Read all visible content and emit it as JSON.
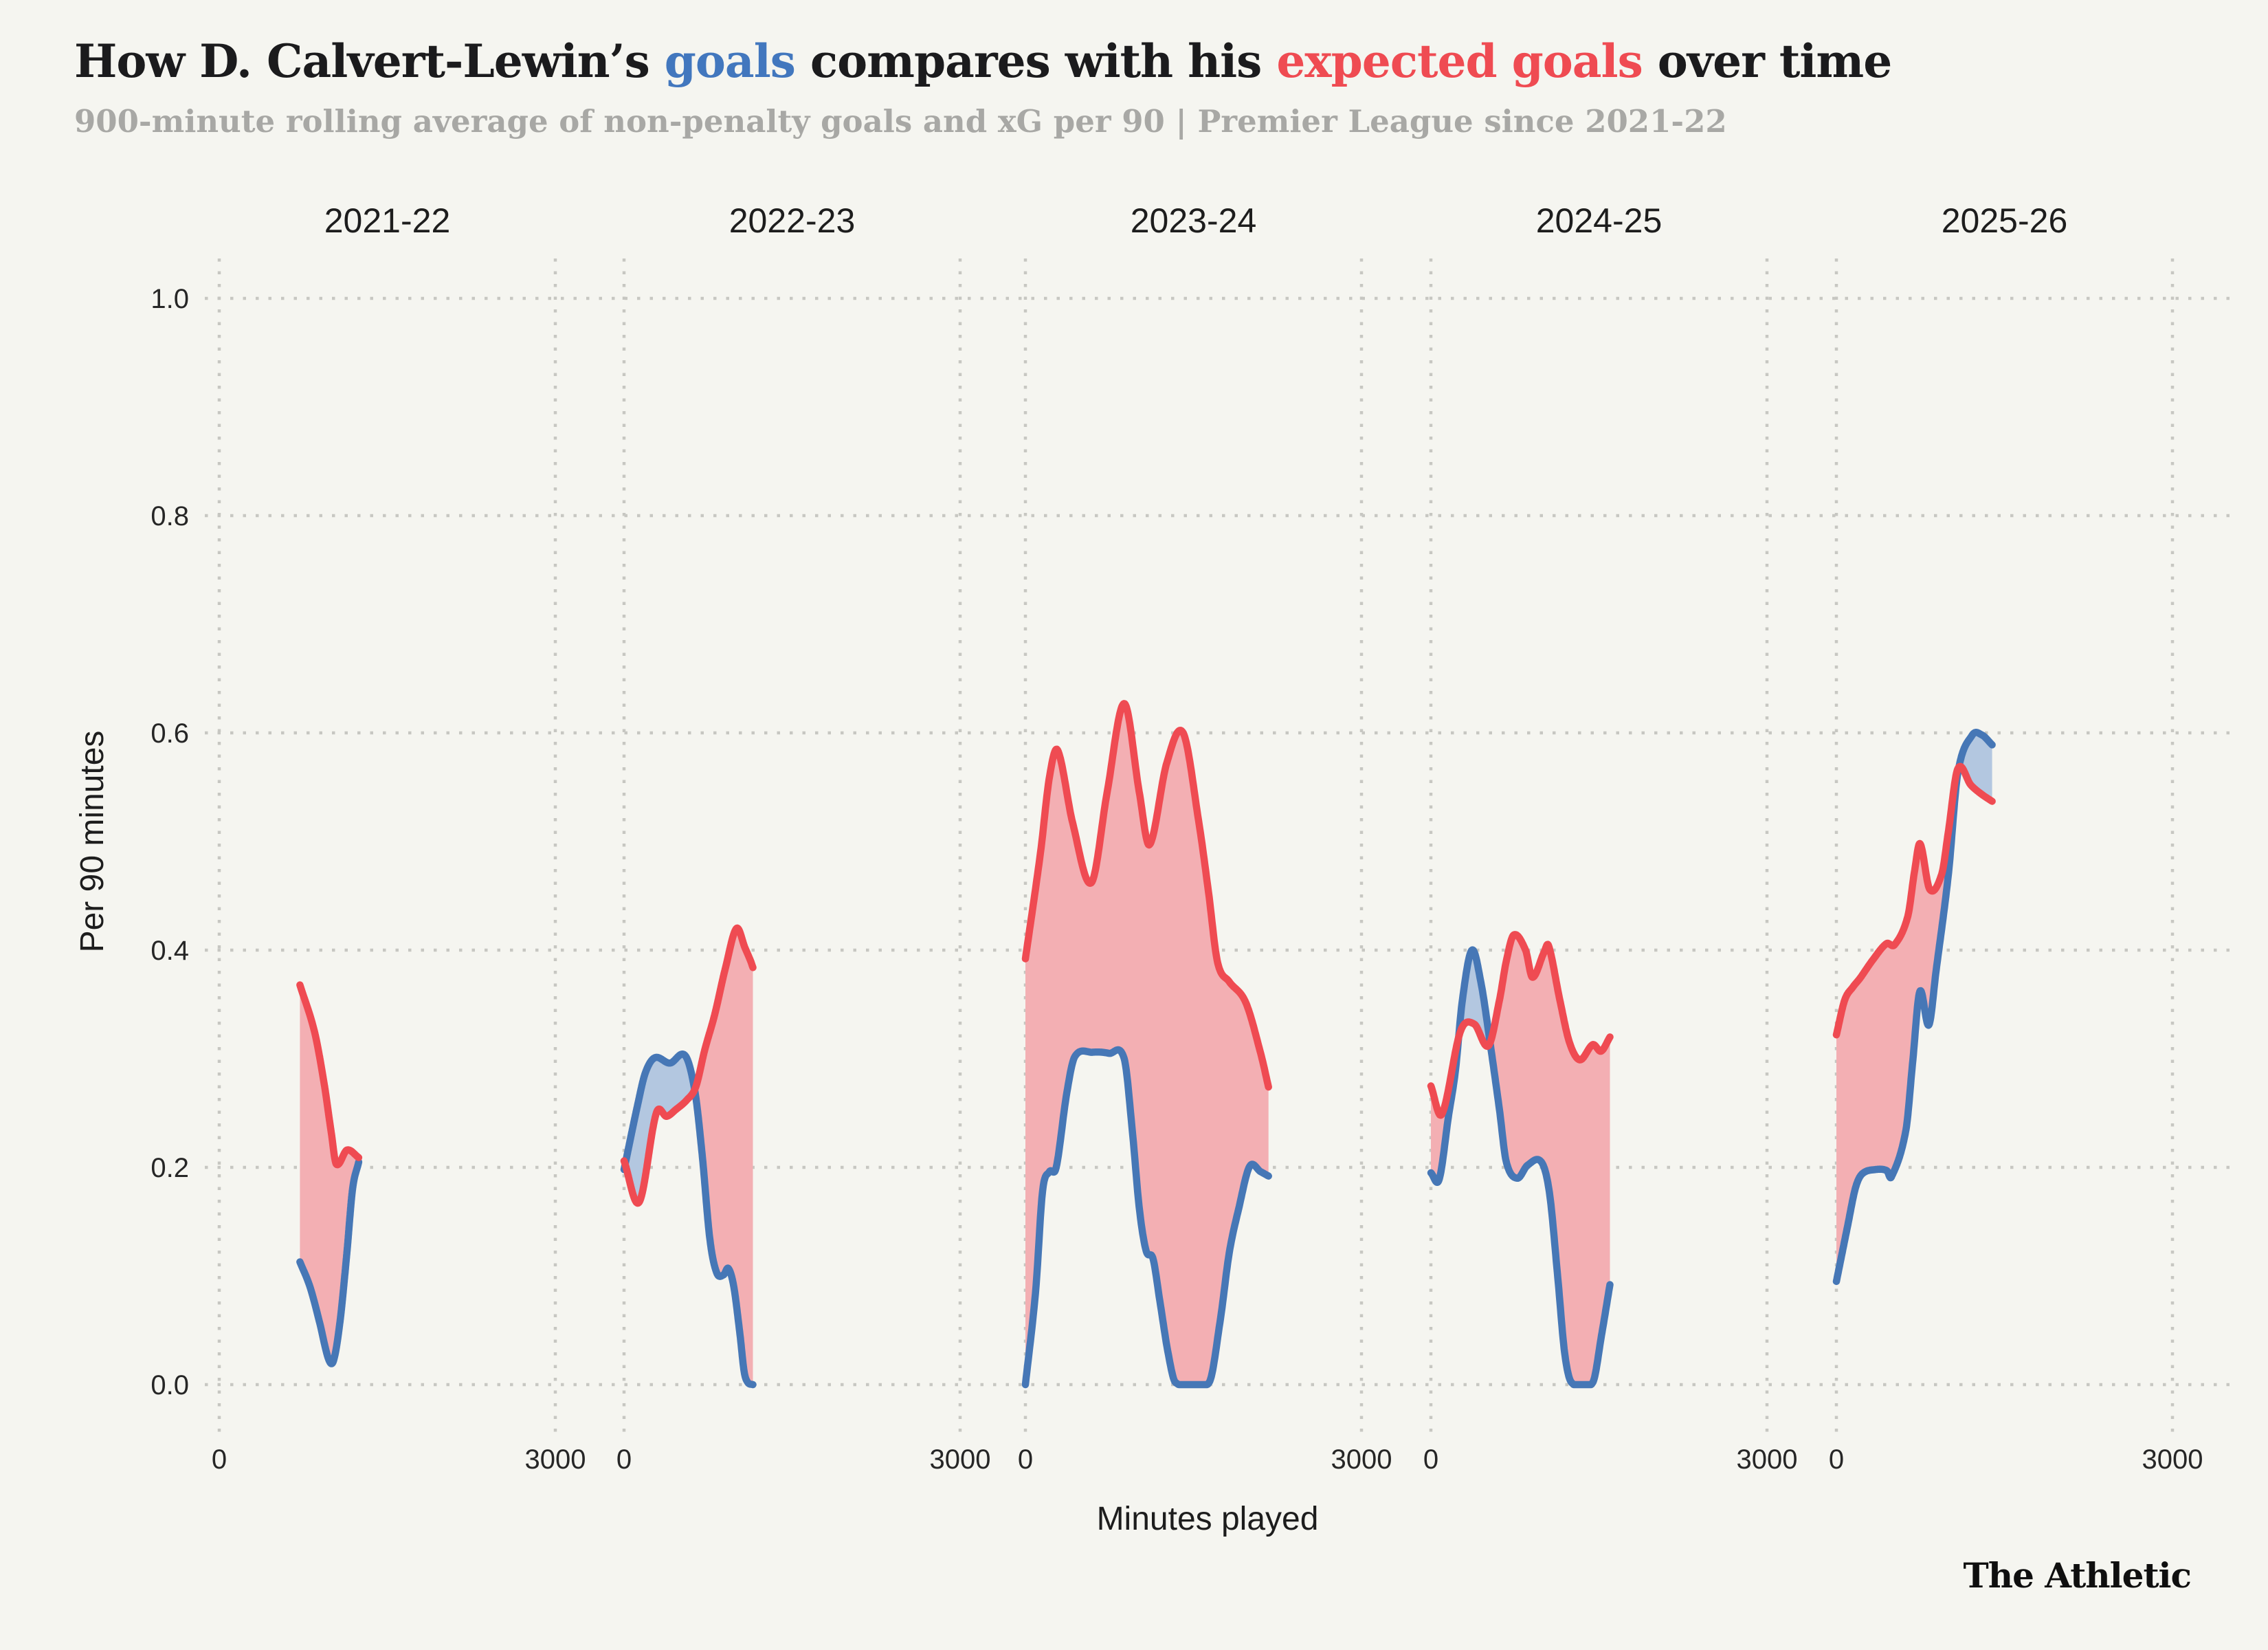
{
  "title": {
    "parts": [
      {
        "text": "How D. Calvert-Lewin’s ",
        "color": "#1B1B1D"
      },
      {
        "text": "goals",
        "color": "#4277BE"
      },
      {
        "text": " compares with his ",
        "color": "#1B1B1D"
      },
      {
        "text": "expected goals",
        "color": "#EF4B52"
      },
      {
        "text": " over time",
        "color": "#1B1B1D"
      }
    ]
  },
  "subtitle": "900-minute rolling average of non-penalty goals and xG per 90 | Premier League since 2021-22",
  "footer": {
    "brand": "The Athletic"
  },
  "colors": {
    "background": "#F5F5F0",
    "goals_line": "#4677B6",
    "xg_line": "#EF4B52",
    "goals_fill": "#B3C7E0",
    "xg_fill": "#F3AFB3",
    "grid": "#C7C7C2",
    "axis_text": "#1D1D1D"
  },
  "chart_data": {
    "type": "area",
    "title": "How D. Calvert-Lewin's goals compares with his expected goals over time",
    "subtitle": "900-minute rolling average of non-penalty goals and xG per 90 | Premier League since 2021-22",
    "x_axis": {
      "label": "Minutes played",
      "ticks": [
        {
          "label": "0",
          "value": 0
        },
        {
          "label": "3000",
          "value": 3000
        }
      ]
    },
    "y_axis": {
      "label": "Per 90 minutes",
      "range": [
        0.0,
        1.08
      ],
      "ticks": [
        {
          "label": "0.0",
          "value": 0.0
        },
        {
          "label": "0.2",
          "value": 0.2
        },
        {
          "label": "0.4",
          "value": 0.4
        },
        {
          "label": "0.6",
          "value": 0.6
        },
        {
          "label": "0.8",
          "value": 0.8
        },
        {
          "label": "1.0",
          "value": 1.0
        }
      ]
    },
    "series_meta": [
      {
        "key": "goals",
        "name": "goals (non-penalty, per 90)",
        "color": "#4677B6"
      },
      {
        "key": "xg",
        "name": "expected goals (xG per 90)",
        "color": "#EF4B52"
      }
    ],
    "panels": [
      {
        "season": "2021-22",
        "goals": [
          [
            720,
            0.113
          ],
          [
            810,
            0.09
          ],
          [
            894,
            0.058
          ],
          [
            974,
            0.024
          ],
          [
            1020,
            0.022
          ],
          [
            1078,
            0.058
          ],
          [
            1140,
            0.122
          ],
          [
            1190,
            0.18
          ],
          [
            1245,
            0.205
          ]
        ],
        "xg": [
          [
            720,
            0.368
          ],
          [
            850,
            0.325
          ],
          [
            935,
            0.278
          ],
          [
            1000,
            0.232
          ],
          [
            1045,
            0.203
          ],
          [
            1141,
            0.216
          ],
          [
            1245,
            0.209
          ]
        ]
      },
      {
        "season": "2022-23",
        "goals": [
          [
            0,
            0.198
          ],
          [
            116,
            0.255
          ],
          [
            190,
            0.287
          ],
          [
            276,
            0.301
          ],
          [
            410,
            0.296
          ],
          [
            545,
            0.303
          ],
          [
            631,
            0.271
          ],
          [
            698,
            0.211
          ],
          [
            766,
            0.134
          ],
          [
            827,
            0.103
          ],
          [
            888,
            0.101
          ],
          [
            931,
            0.107
          ],
          [
            980,
            0.09
          ],
          [
            1035,
            0.046
          ],
          [
            1072,
            0.012
          ],
          [
            1105,
            0.002
          ],
          [
            1150,
            0.0
          ]
        ],
        "xg": [
          [
            0,
            0.206
          ],
          [
            135,
            0.168
          ],
          [
            288,
            0.25
          ],
          [
            380,
            0.247
          ],
          [
            460,
            0.253
          ],
          [
            560,
            0.262
          ],
          [
            640,
            0.274
          ],
          [
            720,
            0.308
          ],
          [
            810,
            0.341
          ],
          [
            906,
            0.384
          ],
          [
            1004,
            0.42
          ],
          [
            1080,
            0.402
          ],
          [
            1130,
            0.39
          ],
          [
            1150,
            0.384
          ]
        ]
      },
      {
        "season": "2023-24",
        "goals": [
          [
            0,
            0.0
          ],
          [
            92,
            0.087
          ],
          [
            153,
            0.178
          ],
          [
            214,
            0.196
          ],
          [
            275,
            0.2
          ],
          [
            367,
            0.267
          ],
          [
            441,
            0.302
          ],
          [
            600,
            0.306
          ],
          [
            747,
            0.305
          ],
          [
            882,
            0.3
          ],
          [
            955,
            0.233
          ],
          [
            1017,
            0.162
          ],
          [
            1078,
            0.123
          ],
          [
            1139,
            0.116
          ],
          [
            1200,
            0.077
          ],
          [
            1274,
            0.029
          ],
          [
            1340,
            0.002
          ],
          [
            1640,
            0.002
          ],
          [
            1739,
            0.059
          ],
          [
            1819,
            0.121
          ],
          [
            1904,
            0.162
          ],
          [
            2002,
            0.201
          ],
          [
            2100,
            0.196
          ],
          [
            2170,
            0.192
          ]
        ],
        "xg": [
          [
            0,
            0.392
          ],
          [
            135,
            0.49
          ],
          [
            214,
            0.559
          ],
          [
            288,
            0.584
          ],
          [
            422,
            0.517
          ],
          [
            588,
            0.462
          ],
          [
            729,
            0.545
          ],
          [
            882,
            0.627
          ],
          [
            1017,
            0.545
          ],
          [
            1108,
            0.497
          ],
          [
            1261,
            0.572
          ],
          [
            1408,
            0.6
          ],
          [
            1549,
            0.517
          ],
          [
            1635,
            0.453
          ],
          [
            1715,
            0.389
          ],
          [
            1819,
            0.371
          ],
          [
            1966,
            0.352
          ],
          [
            2100,
            0.305
          ],
          [
            2170,
            0.274
          ]
        ]
      },
      {
        "season": "2024-25",
        "goals": [
          [
            0,
            0.195
          ],
          [
            74,
            0.189
          ],
          [
            157,
            0.247
          ],
          [
            219,
            0.289
          ],
          [
            281,
            0.354
          ],
          [
            366,
            0.4
          ],
          [
            447,
            0.37
          ],
          [
            532,
            0.312
          ],
          [
            612,
            0.253
          ],
          [
            673,
            0.205
          ],
          [
            771,
            0.19
          ],
          [
            863,
            0.202
          ],
          [
            986,
            0.205
          ],
          [
            1059,
            0.176
          ],
          [
            1133,
            0.098
          ],
          [
            1194,
            0.029
          ],
          [
            1255,
            0.002
          ],
          [
            1445,
            0.002
          ],
          [
            1524,
            0.046
          ],
          [
            1598,
            0.092
          ]
        ],
        "xg": [
          [
            0,
            0.275
          ],
          [
            98,
            0.249
          ],
          [
            263,
            0.325
          ],
          [
            386,
            0.332
          ],
          [
            514,
            0.312
          ],
          [
            612,
            0.354
          ],
          [
            673,
            0.39
          ],
          [
            740,
            0.414
          ],
          [
            845,
            0.4
          ],
          [
            906,
            0.375
          ],
          [
            1010,
            0.398
          ],
          [
            1051,
            0.404
          ],
          [
            1151,
            0.354
          ],
          [
            1237,
            0.315
          ],
          [
            1330,
            0.299
          ],
          [
            1445,
            0.313
          ],
          [
            1520,
            0.307
          ],
          [
            1598,
            0.32
          ]
        ]
      },
      {
        "season": "2025-26",
        "goals": [
          [
            0,
            0.095
          ],
          [
            100,
            0.146
          ],
          [
            170,
            0.181
          ],
          [
            230,
            0.194
          ],
          [
            350,
            0.198
          ],
          [
            450,
            0.197
          ],
          [
            490,
            0.191
          ],
          [
            620,
            0.234
          ],
          [
            680,
            0.296
          ],
          [
            745,
            0.362
          ],
          [
            825,
            0.331
          ],
          [
            890,
            0.381
          ],
          [
            1000,
            0.47
          ],
          [
            1084,
            0.563
          ],
          [
            1213,
            0.598
          ],
          [
            1300,
            0.598
          ],
          [
            1390,
            0.589
          ]
        ],
        "xg": [
          [
            0,
            0.322
          ],
          [
            74,
            0.354
          ],
          [
            147,
            0.366
          ],
          [
            210,
            0.374
          ],
          [
            325,
            0.391
          ],
          [
            447,
            0.406
          ],
          [
            520,
            0.405
          ],
          [
            637,
            0.431
          ],
          [
            698,
            0.473
          ],
          [
            747,
            0.498
          ],
          [
            833,
            0.456
          ],
          [
            940,
            0.47
          ],
          [
            998,
            0.508
          ],
          [
            1084,
            0.567
          ],
          [
            1200,
            0.552
          ],
          [
            1290,
            0.544
          ],
          [
            1390,
            0.537
          ]
        ]
      }
    ]
  }
}
